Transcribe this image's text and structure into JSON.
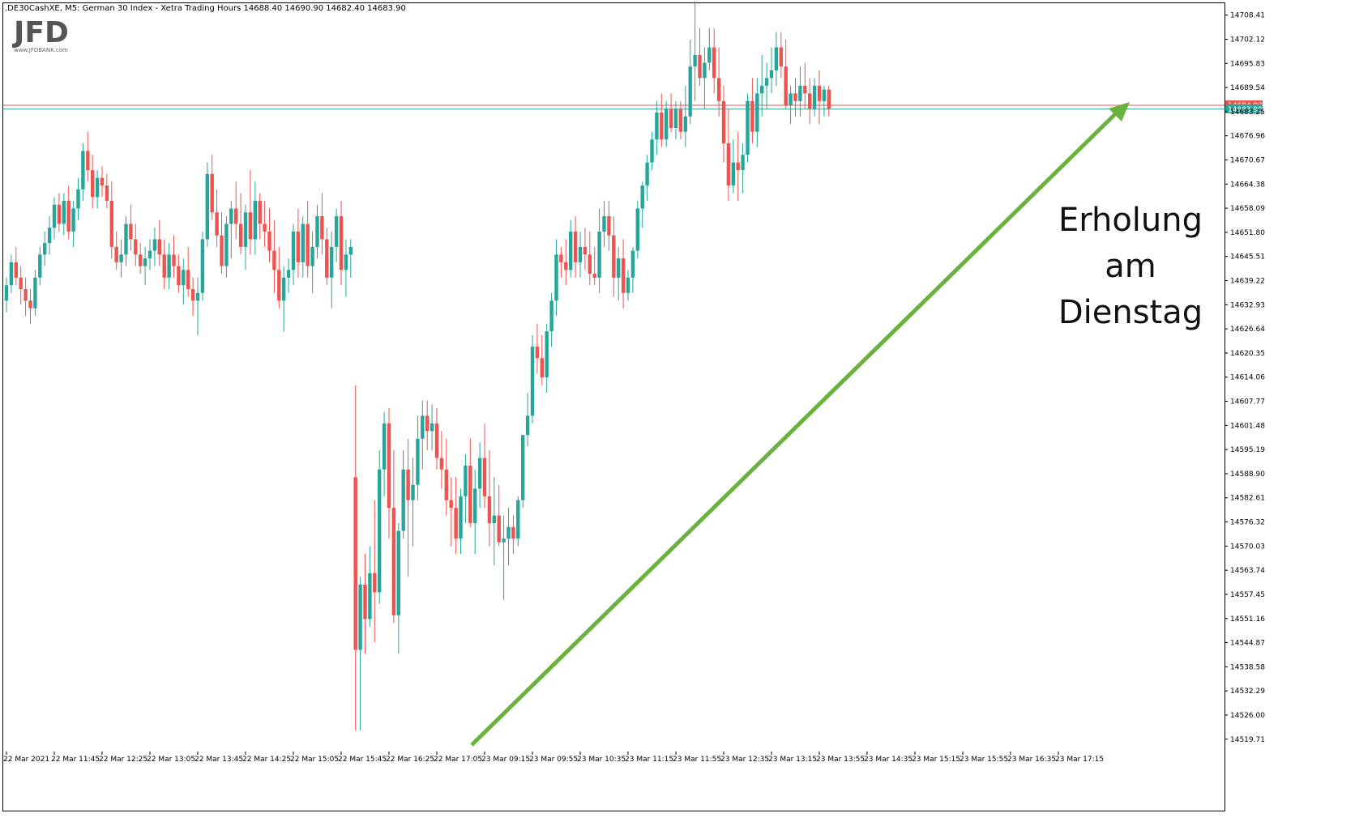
{
  "header": {
    "symbol_info": ".DE30CashXE, M5:  German 30 Index  - Xetra Trading Hours  14688.40 14690.90 14682.40 14683.90"
  },
  "logo": {
    "name": "JFD",
    "sub": "www.JFDBANK.com"
  },
  "annotation": {
    "lines": [
      "Erholung",
      "am",
      "Dienstag"
    ]
  },
  "colors": {
    "bull": "#26a69a",
    "bear": "#ef5350",
    "bid_line": "#26a69a",
    "ask_line": "#ef5350",
    "arrow": "#6ab23e",
    "frame": "#000000"
  },
  "chart_data": {
    "type": "candlestick",
    "ylim": [
      14516.5,
      14711.5
    ],
    "y_ticks": [
      "14708.41",
      "14702.12",
      "14695.83",
      "14689.54",
      "14683.25",
      "14676.96",
      "14670.67",
      "14664.38",
      "14658.09",
      "14651.80",
      "14645.51",
      "14639.22",
      "14632.93",
      "14626.64",
      "14620.35",
      "14614.06",
      "14607.77",
      "14601.48",
      "14595.19",
      "14588.90",
      "14582.61",
      "14576.32",
      "14570.03",
      "14563.74",
      "14557.45",
      "14551.16",
      "14544.87",
      "14538.58",
      "14532.29",
      "14526.00",
      "14519.71"
    ],
    "x_ticks": [
      {
        "label": "22 Mar 2021",
        "index": 0
      },
      {
        "label": "22 Mar 11:45",
        "index": 10
      },
      {
        "label": "22 Mar 12:25",
        "index": 20
      },
      {
        "label": "22 Mar 13:05",
        "index": 30
      },
      {
        "label": "22 Mar 13:45",
        "index": 40
      },
      {
        "label": "22 Mar 14:25",
        "index": 50
      },
      {
        "label": "22 Mar 15:05",
        "index": 60
      },
      {
        "label": "22 Mar 15:45",
        "index": 70
      },
      {
        "label": "22 Mar 16:25",
        "index": 80
      },
      {
        "label": "22 Mar 17:05",
        "index": 90
      },
      {
        "label": "23 Mar 09:15",
        "index": 100
      },
      {
        "label": "23 Mar 09:55",
        "index": 110
      },
      {
        "label": "23 Mar 10:35",
        "index": 120
      },
      {
        "label": "23 Mar 11:15",
        "index": 130
      },
      {
        "label": "23 Mar 11:55",
        "index": 140
      },
      {
        "label": "23 Mar 12:35",
        "index": 150
      },
      {
        "label": "23 Mar 13:15",
        "index": 160
      },
      {
        "label": "23 Mar 13:55",
        "index": 170
      },
      {
        "label": "23 Mar 14:35",
        "index": 180
      },
      {
        "label": "23 Mar 15:15",
        "index": 190
      },
      {
        "label": "23 Mar 15:55",
        "index": 200
      },
      {
        "label": "23 Mar 16:35",
        "index": 210
      },
      {
        "label": "23 Mar 17:15",
        "index": 220
      }
    ],
    "price_lines": [
      {
        "name": "ask",
        "value": 14684.9,
        "label": "14684.90"
      },
      {
        "name": "bid",
        "value": 14683.9,
        "label": "14683.90"
      }
    ],
    "candles": [
      [
        14634,
        14640,
        14631,
        14638
      ],
      [
        14638,
        14646,
        14636,
        14644
      ],
      [
        14644,
        14648,
        14638,
        14640
      ],
      [
        14640,
        14643,
        14633,
        14637
      ],
      [
        14637,
        14640,
        14630,
        14634
      ],
      [
        14634,
        14637,
        14628,
        14632
      ],
      [
        14632,
        14642,
        14630,
        14640
      ],
      [
        14640,
        14648,
        14638,
        14646
      ],
      [
        14646,
        14652,
        14643,
        14649
      ],
      [
        14649,
        14656,
        14646,
        14653
      ],
      [
        14653,
        14661,
        14650,
        14659
      ],
      [
        14659,
        14662,
        14652,
        14654
      ],
      [
        14654,
        14662,
        14651,
        14660
      ],
      [
        14660,
        14664,
        14650,
        14652
      ],
      [
        14652,
        14660,
        14648,
        14658
      ],
      [
        14658,
        14666,
        14655,
        14663
      ],
      [
        14663,
        14675,
        14660,
        14673
      ],
      [
        14673,
        14678,
        14665,
        14668
      ],
      [
        14668,
        14672,
        14658,
        14661
      ],
      [
        14661,
        14668,
        14658,
        14666
      ],
      [
        14666,
        14669,
        14661,
        14664
      ],
      [
        14664,
        14667,
        14658,
        14660
      ],
      [
        14660,
        14665,
        14645,
        14648
      ],
      [
        14648,
        14652,
        14642,
        14644
      ],
      [
        14644,
        14650,
        14640,
        14646
      ],
      [
        14646,
        14656,
        14643,
        14654
      ],
      [
        14654,
        14659,
        14647,
        14650
      ],
      [
        14650,
        14654,
        14643,
        14646
      ],
      [
        14646,
        14649,
        14641,
        14643
      ],
      [
        14643,
        14648,
        14638,
        14645
      ],
      [
        14645,
        14650,
        14642,
        14647
      ],
      [
        14647,
        14653,
        14643,
        14650
      ],
      [
        14650,
        14655,
        14643,
        14646
      ],
      [
        14646,
        14650,
        14637,
        14640
      ],
      [
        14640,
        14649,
        14637,
        14646
      ],
      [
        14646,
        14651,
        14640,
        14643
      ],
      [
        14643,
        14646,
        14636,
        14638
      ],
      [
        14638,
        14645,
        14633,
        14642
      ],
      [
        14642,
        14648,
        14635,
        14637
      ],
      [
        14637,
        14640,
        14630,
        14634
      ],
      [
        14634,
        14640,
        14625,
        14636
      ],
      [
        14636,
        14652,
        14634,
        14650
      ],
      [
        14650,
        14670,
        14648,
        14667
      ],
      [
        14667,
        14672,
        14655,
        14657
      ],
      [
        14657,
        14663,
        14648,
        14651
      ],
      [
        14651,
        14657,
        14641,
        14643
      ],
      [
        14643,
        14656,
        14640,
        14654
      ],
      [
        14654,
        14660,
        14645,
        14658
      ],
      [
        14658,
        14665,
        14650,
        14654
      ],
      [
        14654,
        14662,
        14646,
        14648
      ],
      [
        14648,
        14659,
        14642,
        14657
      ],
      [
        14657,
        14668,
        14646,
        14650
      ],
      [
        14650,
        14665,
        14646,
        14660
      ],
      [
        14660,
        14662,
        14650,
        14654
      ],
      [
        14654,
        14660,
        14648,
        14652
      ],
      [
        14652,
        14658,
        14644,
        14647
      ],
      [
        14647,
        14655,
        14636,
        14642
      ],
      [
        14642,
        14648,
        14632,
        14634
      ],
      [
        14634,
        14643,
        14626,
        14640
      ],
      [
        14640,
        14645,
        14636,
        14642
      ],
      [
        14642,
        14654,
        14638,
        14652
      ],
      [
        14652,
        14658,
        14640,
        14644
      ],
      [
        14644,
        14656,
        14640,
        14654
      ],
      [
        14654,
        14660,
        14640,
        14643
      ],
      [
        14643,
        14652,
        14636,
        14648
      ],
      [
        14648,
        14659,
        14645,
        14656
      ],
      [
        14656,
        14662,
        14646,
        14650
      ],
      [
        14650,
        14653,
        14638,
        14640
      ],
      [
        14640,
        14652,
        14632,
        14648
      ],
      [
        14648,
        14658,
        14644,
        14656
      ],
      [
        14656,
        14660,
        14638,
        14642
      ],
      [
        14642,
        14650,
        14635,
        14646
      ],
      [
        14646,
        14650,
        14640,
        14648
      ]
    ],
    "candles_day2": [
      [
        14588,
        14612,
        14522,
        14543
      ],
      [
        14543,
        14562,
        14522,
        14560
      ],
      [
        14560,
        14568,
        14542,
        14551
      ],
      [
        14551,
        14570,
        14549,
        14563
      ],
      [
        14563,
        14582,
        14545,
        14558
      ],
      [
        14558,
        14595,
        14555,
        14590
      ],
      [
        14590,
        14605,
        14583,
        14602
      ],
      [
        14602,
        14606,
        14572,
        14580
      ],
      [
        14580,
        14595,
        14550,
        14552
      ],
      [
        14552,
        14576,
        14542,
        14574
      ],
      [
        14574,
        14595,
        14572,
        14590
      ],
      [
        14590,
        14598,
        14562,
        14582
      ],
      [
        14582,
        14593,
        14570,
        14586
      ],
      [
        14586,
        14604,
        14582,
        14598
      ],
      [
        14598,
        14608,
        14590,
        14604
      ],
      [
        14604,
        14608,
        14595,
        14600
      ],
      [
        14600,
        14607,
        14595,
        14602
      ],
      [
        14602,
        14606,
        14590,
        14593
      ],
      [
        14593,
        14600,
        14585,
        14590
      ],
      [
        14590,
        14598,
        14578,
        14582
      ],
      [
        14582,
        14588,
        14570,
        14580
      ],
      [
        14580,
        14588,
        14568,
        14572
      ],
      [
        14572,
        14585,
        14568,
        14583
      ],
      [
        14583,
        14594,
        14576,
        14591
      ],
      [
        14591,
        14598,
        14575,
        14576
      ],
      [
        14576,
        14590,
        14568,
        14585
      ],
      [
        14585,
        14597,
        14580,
        14593
      ],
      [
        14593,
        14602,
        14580,
        14583
      ],
      [
        14583,
        14595,
        14570,
        14576
      ],
      [
        14576,
        14588,
        14565,
        14578
      ],
      [
        14578,
        14586,
        14570,
        14571
      ],
      [
        14571,
        14578,
        14556,
        14572
      ],
      [
        14572,
        14580,
        14565,
        14575
      ],
      [
        14575,
        14578,
        14568,
        14572
      ],
      [
        14572,
        14583,
        14570,
        14582
      ],
      [
        14582,
        14598,
        14580,
        14599
      ],
      [
        14599,
        14610,
        14596,
        14604
      ],
      [
        14604,
        14625,
        14602,
        14622
      ],
      [
        14622,
        14628,
        14615,
        14619
      ],
      [
        14619,
        14625,
        14612,
        14614
      ],
      [
        14614,
        14628,
        14610,
        14626
      ],
      [
        14626,
        14636,
        14622,
        14634
      ],
      [
        14634,
        14650,
        14630,
        14646
      ],
      [
        14646,
        14648,
        14640,
        14644
      ],
      [
        14644,
        14650,
        14638,
        14642
      ],
      [
        14642,
        14655,
        14640,
        14652
      ],
      [
        14652,
        14656,
        14640,
        14644
      ],
      [
        14644,
        14652,
        14640,
        14648
      ],
      [
        14648,
        14653,
        14642,
        14646
      ],
      [
        14646,
        14652,
        14638,
        14641
      ],
      [
        14641,
        14648,
        14638,
        14640
      ],
      [
        14640,
        14658,
        14636,
        14652
      ],
      [
        14652,
        14660,
        14648,
        14656
      ],
      [
        14656,
        14660,
        14647,
        14651
      ],
      [
        14651,
        14656,
        14635,
        14640
      ],
      [
        14640,
        14648,
        14634,
        14645
      ],
      [
        14645,
        14650,
        14632,
        14636
      ],
      [
        14636,
        14642,
        14634,
        14640
      ],
      [
        14640,
        14648,
        14636,
        14647
      ],
      [
        14647,
        14660,
        14645,
        14658
      ],
      [
        14658,
        14665,
        14653,
        14664
      ],
      [
        14664,
        14672,
        14660,
        14670
      ],
      [
        14670,
        14678,
        14668,
        14676
      ],
      [
        14676,
        14686,
        14672,
        14683
      ],
      [
        14683,
        14688,
        14674,
        14676
      ],
      [
        14676,
        14686,
        14674,
        14684
      ],
      [
        14684,
        14688,
        14678,
        14679
      ],
      [
        14679,
        14686,
        14676,
        14684
      ],
      [
        14684,
        14686,
        14676,
        14678
      ],
      [
        14678,
        14690,
        14674,
        14682
      ],
      [
        14682,
        14702,
        14680,
        14695
      ],
      [
        14695,
        14712,
        14686,
        14698
      ],
      [
        14698,
        14705,
        14690,
        14692
      ],
      [
        14692,
        14700,
        14684,
        14696
      ],
      [
        14696,
        14705,
        14694,
        14700
      ],
      [
        14700,
        14705,
        14688,
        14692
      ],
      [
        14692,
        14700,
        14682,
        14686
      ],
      [
        14686,
        14690,
        14670,
        14675
      ],
      [
        14675,
        14684,
        14660,
        14664
      ],
      [
        14664,
        14676,
        14662,
        14670
      ],
      [
        14670,
        14678,
        14660,
        14668
      ],
      [
        14668,
        14675,
        14662,
        14672
      ],
      [
        14672,
        14688,
        14670,
        14686
      ],
      [
        14686,
        14692,
        14675,
        14678
      ],
      [
        14678,
        14692,
        14674,
        14688
      ],
      [
        14688,
        14698,
        14682,
        14690
      ],
      [
        14690,
        14696,
        14684,
        14692
      ],
      [
        14692,
        14700,
        14688,
        14694
      ],
      [
        14694,
        14704,
        14690,
        14700
      ],
      [
        14700,
        14704,
        14692,
        14695
      ],
      [
        14695,
        14702,
        14684,
        14685
      ],
      [
        14685,
        14690,
        14680,
        14688
      ],
      [
        14688,
        14692,
        14682,
        14686
      ],
      [
        14686,
        14695,
        14682,
        14690
      ],
      [
        14690,
        14696,
        14684,
        14688
      ],
      [
        14688,
        14692,
        14680,
        14684
      ],
      [
        14684,
        14692,
        14682,
        14690
      ],
      [
        14690,
        14694,
        14680,
        14686
      ],
      [
        14686,
        14690,
        14682,
        14689
      ],
      [
        14689,
        14690,
        14682,
        14684
      ]
    ]
  }
}
